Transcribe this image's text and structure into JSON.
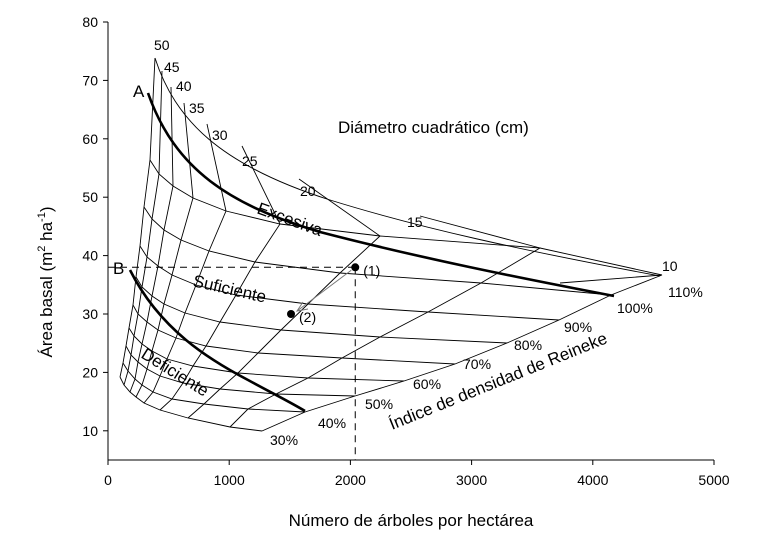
{
  "chart_data": {
    "type": "line",
    "title": "Diámetro cuadrático (cm)",
    "xlabel": "Número de árboles por hectárea",
    "ylabel_main": "Área basal (m",
    "ylabel_sup1": "2",
    "ylabel_mid": " ha",
    "ylabel_sup2": "-1",
    "ylabel_end": ")",
    "xlim": [
      0,
      5000
    ],
    "ylim": [
      5,
      80
    ],
    "xticks": [
      "0",
      "1000",
      "2000",
      "3000",
      "4000",
      "5000"
    ],
    "yticks": [
      "10",
      "20",
      "30",
      "40",
      "50",
      "60",
      "70",
      "80"
    ],
    "diameter_labels": [
      "50",
      "45",
      "40",
      "35",
      "30",
      "25",
      "20",
      "15",
      "10"
    ],
    "density_labels": [
      "30%",
      "40%",
      "50%",
      "60%",
      "70%",
      "80%",
      "90%",
      "100%",
      "110%"
    ],
    "density_axis_label": "Índice de densidad de Reineke",
    "zones": {
      "upper": "Excesiva",
      "middle": "Suficiente",
      "lower": "Deficiente"
    },
    "markers": {
      "A": "A",
      "B": "B",
      "p1": "(1)",
      "p2": "(2)"
    },
    "points": [
      {
        "label": "(1)",
        "x": 2040,
        "y": 38
      },
      {
        "label": "(2)",
        "x": 1510,
        "y": 30
      }
    ]
  }
}
